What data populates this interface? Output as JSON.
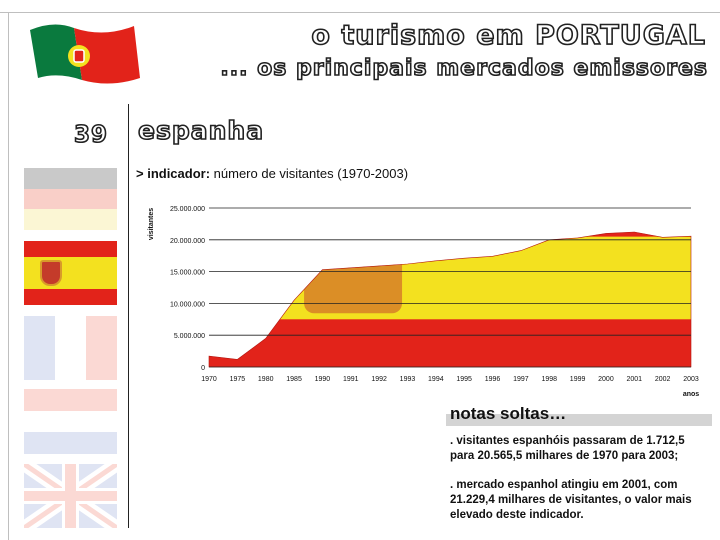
{
  "slide": {
    "title": "o turismo em PORTUGAL",
    "subtitle": "... os principais mercados emissores",
    "number": "39",
    "heading": "espanha",
    "indicator_prefix": "> indicador:",
    "indicator_text": " número de visitantes (1970-2003)"
  },
  "colors": {
    "red": "#e2231a",
    "yellow": "#f3e11f",
    "green": "#0a7a3e"
  },
  "chart_data": {
    "type": "area",
    "title": "",
    "ylabel": "visitantes",
    "xlabel": "anos",
    "ylim": [
      0,
      25000000
    ],
    "y_ticks": [
      "0",
      "5.000.000",
      "10.000.000",
      "15.000.000",
      "20.000.000",
      "25.000.000"
    ],
    "categories": [
      "1970",
      "1975",
      "1980",
      "1985",
      "1990",
      "1991",
      "1992",
      "1993",
      "1994",
      "1995",
      "1996",
      "1997",
      "1998",
      "1999",
      "2000",
      "2001",
      "2002",
      "2003"
    ],
    "values": [
      1712500,
      1200000,
      4500000,
      10500000,
      15300000,
      15600000,
      15900000,
      16200000,
      16700000,
      17100000,
      17400000,
      18300000,
      20000000,
      20300000,
      21000000,
      21229400,
      20400000,
      20565500
    ],
    "gridlines": "horizontal"
  },
  "notes": {
    "title": "notas soltas…",
    "items": [
      ". visitantes espanhóis passaram de 1.712,5 para 20.565,5 milhares de 1970 para 2003;",
      ". mercado espanhol atingiu em 2001, com 21.229,4 milhares de visitantes, o valor mais elevado deste indicador."
    ]
  },
  "sidebar_flags": [
    "germany-flag",
    "spain-flag",
    "france-flag",
    "netherlands-flag",
    "uk-flag"
  ]
}
